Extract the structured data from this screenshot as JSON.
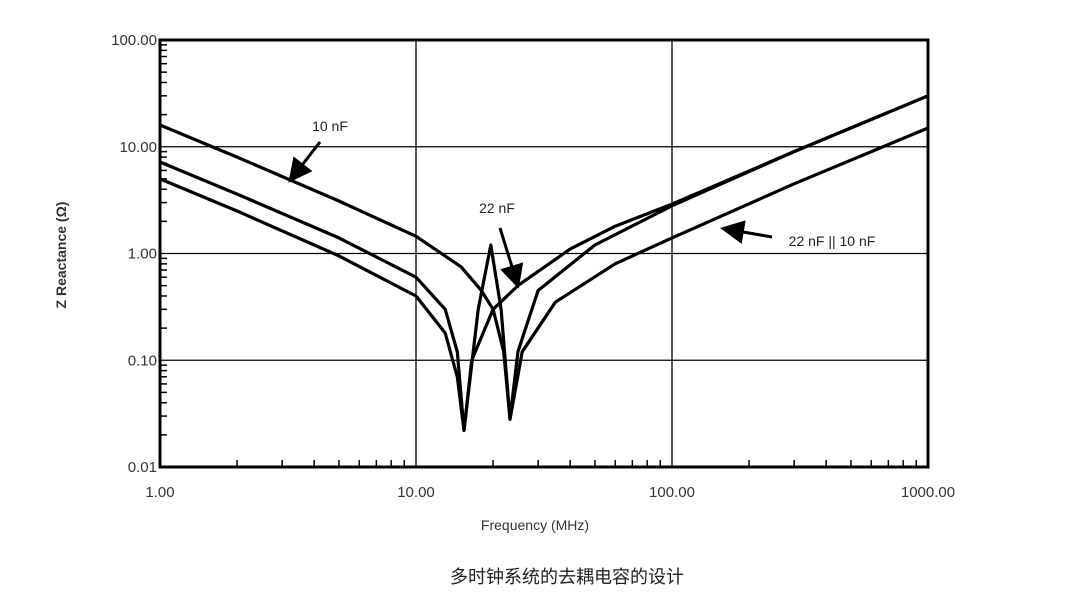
{
  "chart_data": {
    "type": "line",
    "title": "",
    "xlabel": "Frequency (MHz)",
    "ylabel": "Z Reactance (Ω)",
    "xscale": "log",
    "yscale": "log",
    "xlim": [
      1,
      1000
    ],
    "ylim": [
      0.01,
      100
    ],
    "grid": true,
    "x_tick_labels": [
      "1.00",
      "10.00",
      "100.00",
      "1000.00"
    ],
    "y_tick_labels": [
      "100.00",
      "10.00",
      "1.00",
      "0.10",
      "0.01"
    ],
    "line_color": "#000000",
    "series": [
      {
        "name": "10 nF",
        "points": [
          [
            1,
            16
          ],
          [
            2,
            8
          ],
          [
            5,
            3.1
          ],
          [
            10,
            1.45
          ],
          [
            15,
            0.75
          ],
          [
            18,
            0.45
          ],
          [
            20,
            0.3
          ],
          [
            22,
            0.12
          ],
          [
            23.3,
            0.028
          ],
          [
            25,
            0.12
          ],
          [
            30,
            0.45
          ],
          [
            50,
            1.2
          ],
          [
            100,
            2.8
          ],
          [
            300,
            9
          ],
          [
            1000,
            30
          ]
        ]
      },
      {
        "name": "22 nF",
        "points": [
          [
            1,
            7.2
          ],
          [
            2,
            3.6
          ],
          [
            5,
            1.4
          ],
          [
            10,
            0.6
          ],
          [
            13,
            0.3
          ],
          [
            14.5,
            0.12
          ],
          [
            15.4,
            0.022
          ],
          [
            16.5,
            0.1
          ],
          [
            20,
            0.3
          ],
          [
            25,
            0.5
          ],
          [
            40,
            1.1
          ],
          [
            60,
            1.8
          ],
          [
            100,
            2.9
          ],
          [
            300,
            9
          ],
          [
            1000,
            30
          ]
        ]
      },
      {
        "name": "22 nF || 10 nF",
        "points": [
          [
            1,
            5
          ],
          [
            2,
            2.5
          ],
          [
            5,
            0.95
          ],
          [
            10,
            0.4
          ],
          [
            13,
            0.18
          ],
          [
            14.5,
            0.07
          ],
          [
            15.4,
            0.022
          ],
          [
            17.5,
            0.3
          ],
          [
            19.6,
            1.2
          ],
          [
            21.5,
            0.3
          ],
          [
            23.3,
            0.028
          ],
          [
            26,
            0.12
          ],
          [
            35,
            0.35
          ],
          [
            60,
            0.8
          ],
          [
            100,
            1.4
          ],
          [
            300,
            4.5
          ],
          [
            1000,
            15
          ]
        ]
      }
    ],
    "annotations": [
      {
        "text": "10 nF",
        "series": "10 nF"
      },
      {
        "text": "22 nF",
        "series": "22 nF"
      },
      {
        "text": "22 nF || 10 nF",
        "series": "22 nF || 10 nF"
      }
    ]
  },
  "caption": "多时钟系统的去耦电容的设计"
}
